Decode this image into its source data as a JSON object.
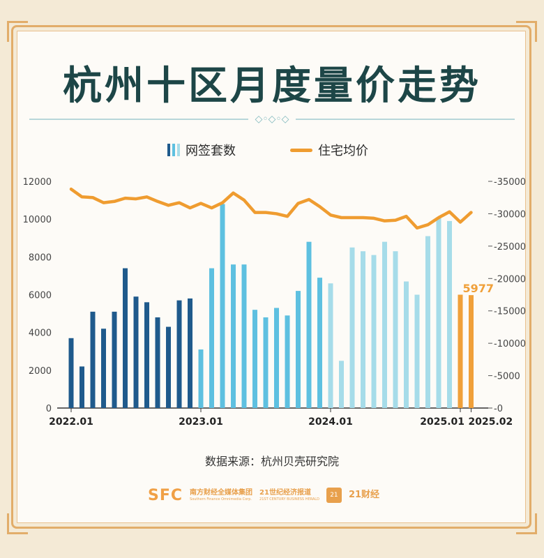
{
  "header": {
    "title": "杭州十区月度量价走势"
  },
  "legend": {
    "bars_label": "网签套数",
    "line_label": "住宅均价"
  },
  "source": {
    "text": "数据来源：杭州贝壳研究院"
  },
  "logos": {
    "sfc": "SFC",
    "sfc_cn": "南方财经全媒体集团",
    "sfc_en": "Southern Finance Omnimedia Corp.",
    "cbh_cn": "21世纪经济报道",
    "cbh_en": "21ST CENTURY BUSINESS HERALD",
    "badge": "21",
    "cj_cn": "21财经"
  },
  "colors": {
    "bar_2022": "#1f5a8c",
    "bar_2023": "#5ec0e0",
    "bar_2024": "#a6dce9",
    "bar_2025": "#f0a03a",
    "line": "#ef9c30",
    "title": "#1d4647",
    "frame": "#e2ad6a"
  },
  "chart_data": {
    "type": "bar",
    "x_tick_labels": [
      "2022.01",
      "2023.01",
      "2024.01",
      "2025.01",
      "2025.02"
    ],
    "highlight_label": "5977",
    "left_axis": {
      "ylim": [
        0,
        12000
      ],
      "ticks": [
        0,
        2000,
        4000,
        6000,
        8000,
        10000,
        12000
      ]
    },
    "right_axis": {
      "ylim": [
        0,
        35000
      ],
      "ticks": [
        0,
        5000,
        10000,
        15000,
        20000,
        25000,
        30000,
        35000
      ]
    },
    "categories": [
      "2022.01",
      "2022.02",
      "2022.03",
      "2022.04",
      "2022.05",
      "2022.06",
      "2022.07",
      "2022.08",
      "2022.09",
      "2022.10",
      "2022.11",
      "2022.12",
      "2023.01",
      "2023.02",
      "2023.03",
      "2023.04",
      "2023.05",
      "2023.06",
      "2023.07",
      "2023.08",
      "2023.09",
      "2023.10",
      "2023.11",
      "2023.12",
      "2024.01",
      "2024.02",
      "2024.03",
      "2024.04",
      "2024.05",
      "2024.06",
      "2024.07",
      "2024.08",
      "2024.09",
      "2024.10",
      "2024.11",
      "2024.12",
      "2025.01",
      "2025.02"
    ],
    "series": [
      {
        "name": "网签套数",
        "kind": "bar",
        "axis": "left",
        "values": [
          3700,
          2200,
          5100,
          4200,
          5100,
          7400,
          5900,
          5600,
          4800,
          4300,
          5700,
          5800,
          3100,
          7400,
          10800,
          7600,
          7600,
          5200,
          4800,
          5300,
          4900,
          6200,
          8800,
          6900,
          6600,
          2500,
          8500,
          8300,
          8100,
          8800,
          8300,
          6700,
          6000,
          9100,
          10100,
          9900,
          6000,
          5977
        ]
      },
      {
        "name": "住宅均价",
        "kind": "line",
        "axis": "right",
        "values": [
          33800,
          32600,
          32500,
          31700,
          31900,
          32400,
          32300,
          32600,
          31900,
          31300,
          31700,
          30900,
          31600,
          30900,
          31700,
          33200,
          32100,
          30200,
          30200,
          30000,
          29600,
          31600,
          32200,
          31100,
          29800,
          29400,
          29400,
          29400,
          29300,
          28900,
          29000,
          29600,
          27800,
          28300,
          29400,
          30300,
          28700,
          30200
        ]
      }
    ]
  }
}
